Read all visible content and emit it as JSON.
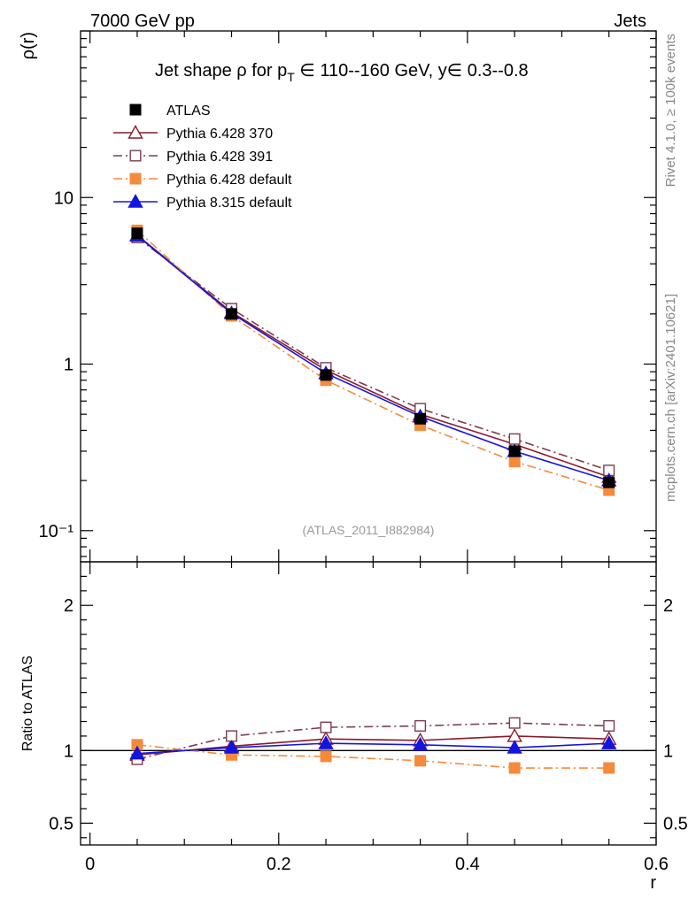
{
  "header": {
    "left": "7000 GeV pp",
    "right": "Jets"
  },
  "side_labels": {
    "rivet": "Rivet 4.1.0, ≥ 100k events",
    "mcplots": "mcplots.cern.ch [arXiv:2401.10621]"
  },
  "watermark": "(ATLAS_2011_I882984)",
  "chart_data": [
    {
      "type": "line",
      "title": "Jet shape ρ for p_T ∈ 110--160 GeV, y∈ 0.3--0.8",
      "title_parts": {
        "lead": "Jet shape ρ for p",
        "sub": "T",
        "tail": " ∈ 110--160 GeV, y∈ 0.3--0.8"
      },
      "xlabel": "r",
      "ylabel": "ρ(r)",
      "yscale": "log",
      "xlim": [
        -0.01,
        0.6
      ],
      "ylim": [
        0.065,
        100
      ],
      "ytick_labels": [
        {
          "value": 10,
          "label": "10"
        },
        {
          "value": 1,
          "label": "1"
        },
        {
          "value": 0.1,
          "label": "10⁻¹"
        }
      ],
      "legend_position": "top-left",
      "x": [
        0.05,
        0.15,
        0.25,
        0.35,
        0.45,
        0.55
      ],
      "series": [
        {
          "name": "ATLAS",
          "color": "#000000",
          "marker": "square-filled",
          "line": "none",
          "values": [
            6.1,
            2.0,
            0.86,
            0.47,
            0.3,
            0.195
          ]
        },
        {
          "name": "Pythia 6.428 370",
          "color": "#8b1a2b",
          "marker": "triangle-open",
          "line": "solid",
          "values": [
            5.95,
            2.05,
            0.92,
            0.5,
            0.33,
            0.21
          ]
        },
        {
          "name": "Pythia 6.428 391",
          "color": "#7a3d50",
          "marker": "square-open",
          "line": "dashdot",
          "values": [
            5.75,
            2.15,
            0.95,
            0.54,
            0.355,
            0.23
          ]
        },
        {
          "name": "Pythia 6.428 default",
          "color": "#f58a3c",
          "marker": "square-filled",
          "line": "dashdot",
          "values": [
            6.35,
            1.95,
            0.8,
            0.43,
            0.26,
            0.175
          ]
        },
        {
          "name": "Pythia 8.315 default",
          "color": "#1414e0",
          "marker": "triangle-filled",
          "line": "solid",
          "values": [
            5.9,
            2.02,
            0.88,
            0.485,
            0.3,
            0.2
          ]
        }
      ]
    },
    {
      "type": "line",
      "ylabel": "Ratio to ATLAS",
      "xlabel": "r",
      "xlim": [
        -0.01,
        0.6
      ],
      "ylim": [
        0.35,
        2.3
      ],
      "ytick_labels": [
        {
          "value": 2,
          "label": "2"
        },
        {
          "value": 1,
          "label": "1"
        },
        {
          "value": 0.5,
          "label": "0.5"
        }
      ],
      "xtick_labels": [
        {
          "value": 0,
          "label": "0"
        },
        {
          "value": 0.2,
          "label": "0.2"
        },
        {
          "value": 0.4,
          "label": "0.4"
        },
        {
          "value": 0.6,
          "label": "0.6"
        }
      ],
      "x": [
        0.05,
        0.15,
        0.25,
        0.35,
        0.45,
        0.55
      ],
      "reference": 1.0,
      "series": [
        {
          "name": "Pythia 6.428 370",
          "values": [
            0.97,
            1.03,
            1.08,
            1.07,
            1.1,
            1.08
          ]
        },
        {
          "name": "Pythia 6.428 391",
          "values": [
            0.94,
            1.1,
            1.16,
            1.17,
            1.19,
            1.17
          ]
        },
        {
          "name": "Pythia 6.428 default",
          "values": [
            1.04,
            0.97,
            0.96,
            0.93,
            0.88,
            0.88
          ]
        },
        {
          "name": "Pythia 8.315 default",
          "values": [
            0.98,
            1.02,
            1.05,
            1.04,
            1.02,
            1.05
          ]
        }
      ]
    }
  ]
}
